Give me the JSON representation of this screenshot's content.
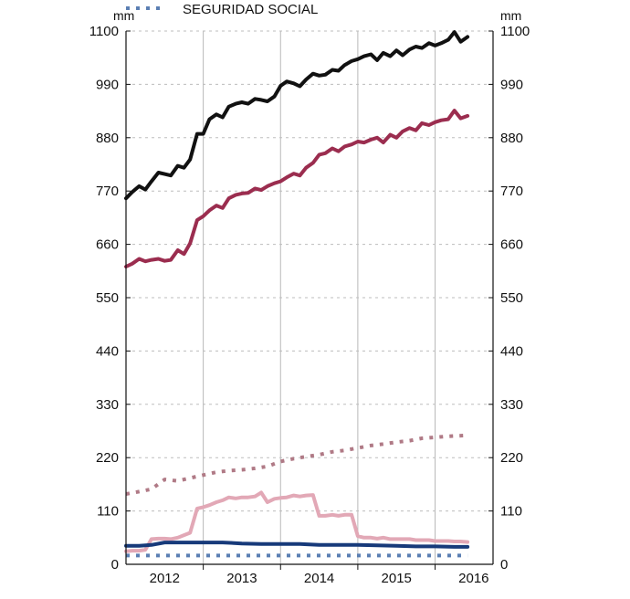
{
  "chart_data": {
    "type": "line",
    "units": {
      "left": "mm",
      "right": "mm"
    },
    "ylim": [
      0,
      1100
    ],
    "yticks": [
      0,
      110,
      220,
      330,
      440,
      550,
      660,
      770,
      880,
      990,
      1100
    ],
    "ytick_labels": [
      "0",
      "110",
      "220",
      "330",
      "440",
      "550",
      "660",
      "770",
      "880",
      "990",
      "1100"
    ],
    "xlim": [
      2011.5,
      2016.25
    ],
    "xtick_labels": [
      {
        "label": "2012",
        "value": 2012.0
      },
      {
        "label": "2013",
        "value": 2013.0
      },
      {
        "label": "2014",
        "value": 2014.0
      },
      {
        "label": "2015",
        "value": 2015.0
      },
      {
        "label": "2016",
        "value": 2016.0
      }
    ],
    "year_boundaries": [
      2012.5,
      2013.5,
      2014.5,
      2015.5
    ],
    "grid": {
      "horizontal": "dashed",
      "vertical": "year-boundaries"
    },
    "legend_visible": [
      {
        "label": "SEGURIDAD SOCIAL",
        "series_id": "ss"
      }
    ],
    "series": [
      {
        "id": "total",
        "color": "#111111",
        "style": "solid",
        "points": [
          [
            2011.5,
            755
          ],
          [
            2011.58,
            768
          ],
          [
            2011.67,
            780
          ],
          [
            2011.75,
            773
          ],
          [
            2011.83,
            790
          ],
          [
            2011.92,
            808
          ],
          [
            2012.0,
            805
          ],
          [
            2012.08,
            802
          ],
          [
            2012.17,
            822
          ],
          [
            2012.25,
            818
          ],
          [
            2012.33,
            835
          ],
          [
            2012.42,
            888
          ],
          [
            2012.5,
            888
          ],
          [
            2012.58,
            918
          ],
          [
            2012.67,
            928
          ],
          [
            2012.75,
            922
          ],
          [
            2012.83,
            944
          ],
          [
            2012.92,
            950
          ],
          [
            2013.0,
            953
          ],
          [
            2013.08,
            950
          ],
          [
            2013.17,
            960
          ],
          [
            2013.25,
            958
          ],
          [
            2013.33,
            955
          ],
          [
            2013.42,
            965
          ],
          [
            2013.5,
            987
          ],
          [
            2013.58,
            996
          ],
          [
            2013.67,
            992
          ],
          [
            2013.75,
            986
          ],
          [
            2013.83,
            1000
          ],
          [
            2013.92,
            1012
          ],
          [
            2014.0,
            1008
          ],
          [
            2014.08,
            1010
          ],
          [
            2014.17,
            1020
          ],
          [
            2014.25,
            1018
          ],
          [
            2014.33,
            1030
          ],
          [
            2014.42,
            1038
          ],
          [
            2014.5,
            1042
          ],
          [
            2014.58,
            1048
          ],
          [
            2014.67,
            1052
          ],
          [
            2014.75,
            1040
          ],
          [
            2014.83,
            1055
          ],
          [
            2014.92,
            1048
          ],
          [
            2015.0,
            1060
          ],
          [
            2015.08,
            1050
          ],
          [
            2015.17,
            1062
          ],
          [
            2015.25,
            1068
          ],
          [
            2015.33,
            1065
          ],
          [
            2015.42,
            1075
          ],
          [
            2015.5,
            1070
          ],
          [
            2015.58,
            1075
          ],
          [
            2015.67,
            1082
          ],
          [
            2015.75,
            1098
          ],
          [
            2015.83,
            1078
          ],
          [
            2015.92,
            1088
          ]
        ]
      },
      {
        "id": "crimson",
        "color": "#9b2d4f",
        "style": "solid",
        "points": [
          [
            2011.5,
            614
          ],
          [
            2011.58,
            620
          ],
          [
            2011.67,
            630
          ],
          [
            2011.75,
            625
          ],
          [
            2011.83,
            628
          ],
          [
            2011.92,
            630
          ],
          [
            2012.0,
            626
          ],
          [
            2012.08,
            628
          ],
          [
            2012.17,
            648
          ],
          [
            2012.25,
            640
          ],
          [
            2012.33,
            662
          ],
          [
            2012.42,
            710
          ],
          [
            2012.5,
            718
          ],
          [
            2012.58,
            730
          ],
          [
            2012.67,
            740
          ],
          [
            2012.75,
            735
          ],
          [
            2012.83,
            755
          ],
          [
            2012.92,
            762
          ],
          [
            2013.0,
            765
          ],
          [
            2013.08,
            766
          ],
          [
            2013.17,
            775
          ],
          [
            2013.25,
            772
          ],
          [
            2013.33,
            780
          ],
          [
            2013.42,
            786
          ],
          [
            2013.5,
            790
          ],
          [
            2013.58,
            798
          ],
          [
            2013.67,
            806
          ],
          [
            2013.75,
            802
          ],
          [
            2013.83,
            818
          ],
          [
            2013.92,
            828
          ],
          [
            2014.0,
            845
          ],
          [
            2014.08,
            848
          ],
          [
            2014.17,
            858
          ],
          [
            2014.25,
            852
          ],
          [
            2014.33,
            862
          ],
          [
            2014.42,
            866
          ],
          [
            2014.5,
            872
          ],
          [
            2014.58,
            870
          ],
          [
            2014.67,
            876
          ],
          [
            2014.75,
            880
          ],
          [
            2014.83,
            870
          ],
          [
            2014.92,
            886
          ],
          [
            2015.0,
            880
          ],
          [
            2015.08,
            893
          ],
          [
            2015.17,
            900
          ],
          [
            2015.25,
            895
          ],
          [
            2015.33,
            910
          ],
          [
            2015.42,
            906
          ],
          [
            2015.5,
            912
          ],
          [
            2015.58,
            916
          ],
          [
            2015.67,
            918
          ],
          [
            2015.75,
            936
          ],
          [
            2015.83,
            920
          ],
          [
            2015.92,
            925
          ]
        ]
      },
      {
        "id": "dotted",
        "color": "#b07a86",
        "style": "dotted",
        "points": [
          [
            2011.5,
            145
          ],
          [
            2011.67,
            150
          ],
          [
            2011.83,
            155
          ],
          [
            2012.0,
            175
          ],
          [
            2012.17,
            172
          ],
          [
            2012.33,
            178
          ],
          [
            2012.5,
            184
          ],
          [
            2012.67,
            190
          ],
          [
            2012.83,
            193
          ],
          [
            2013.0,
            195
          ],
          [
            2013.17,
            198
          ],
          [
            2013.33,
            202
          ],
          [
            2013.5,
            212
          ],
          [
            2013.67,
            218
          ],
          [
            2013.83,
            222
          ],
          [
            2014.0,
            226
          ],
          [
            2014.17,
            232
          ],
          [
            2014.33,
            235
          ],
          [
            2014.5,
            240
          ],
          [
            2014.67,
            245
          ],
          [
            2014.83,
            248
          ],
          [
            2015.0,
            252
          ],
          [
            2015.17,
            255
          ],
          [
            2015.33,
            260
          ],
          [
            2015.5,
            262
          ],
          [
            2015.67,
            264
          ],
          [
            2015.92,
            266
          ]
        ]
      },
      {
        "id": "pink",
        "color": "#e2a8b6",
        "style": "solid",
        "points": [
          [
            2011.5,
            27
          ],
          [
            2011.58,
            28
          ],
          [
            2011.67,
            28
          ],
          [
            2011.75,
            30
          ],
          [
            2011.83,
            52
          ],
          [
            2011.92,
            53
          ],
          [
            2012.0,
            53
          ],
          [
            2012.08,
            52
          ],
          [
            2012.17,
            55
          ],
          [
            2012.25,
            60
          ],
          [
            2012.33,
            65
          ],
          [
            2012.42,
            115
          ],
          [
            2012.5,
            118
          ],
          [
            2012.58,
            122
          ],
          [
            2012.67,
            128
          ],
          [
            2012.75,
            132
          ],
          [
            2012.83,
            138
          ],
          [
            2012.92,
            136
          ],
          [
            2013.0,
            138
          ],
          [
            2013.08,
            138
          ],
          [
            2013.17,
            140
          ],
          [
            2013.25,
            148
          ],
          [
            2013.33,
            128
          ],
          [
            2013.42,
            135
          ],
          [
            2013.5,
            137
          ],
          [
            2013.58,
            138
          ],
          [
            2013.67,
            142
          ],
          [
            2013.75,
            140
          ],
          [
            2013.83,
            142
          ],
          [
            2013.92,
            143
          ],
          [
            2014.0,
            100
          ],
          [
            2014.08,
            100
          ],
          [
            2014.17,
            102
          ],
          [
            2014.25,
            100
          ],
          [
            2014.33,
            102
          ],
          [
            2014.42,
            102
          ],
          [
            2014.5,
            58
          ],
          [
            2014.58,
            55
          ],
          [
            2014.67,
            55
          ],
          [
            2014.75,
            53
          ],
          [
            2014.83,
            55
          ],
          [
            2014.92,
            52
          ],
          [
            2015.0,
            52
          ],
          [
            2015.08,
            52
          ],
          [
            2015.17,
            52
          ],
          [
            2015.25,
            50
          ],
          [
            2015.33,
            50
          ],
          [
            2015.42,
            50
          ],
          [
            2015.5,
            48
          ],
          [
            2015.58,
            48
          ],
          [
            2015.67,
            48
          ],
          [
            2015.75,
            47
          ],
          [
            2015.83,
            47
          ],
          [
            2015.92,
            46
          ]
        ]
      },
      {
        "id": "navy",
        "color": "#173a7a",
        "style": "solid",
        "points": [
          [
            2011.5,
            38
          ],
          [
            2011.67,
            38
          ],
          [
            2011.83,
            40
          ],
          [
            2012.0,
            45
          ],
          [
            2012.25,
            45
          ],
          [
            2012.5,
            45
          ],
          [
            2012.75,
            45
          ],
          [
            2013.0,
            43
          ],
          [
            2013.25,
            42
          ],
          [
            2013.5,
            42
          ],
          [
            2013.75,
            42
          ],
          [
            2014.0,
            40
          ],
          [
            2014.25,
            40
          ],
          [
            2014.5,
            40
          ],
          [
            2014.75,
            39
          ],
          [
            2015.0,
            38
          ],
          [
            2015.25,
            37
          ],
          [
            2015.5,
            37
          ],
          [
            2015.75,
            36
          ],
          [
            2015.92,
            36
          ]
        ]
      },
      {
        "id": "ss",
        "label": "SEGURIDAD SOCIAL",
        "color": "#5b7fb3",
        "style": "dotted",
        "points": [
          [
            2011.5,
            18
          ],
          [
            2012.0,
            18
          ],
          [
            2012.5,
            18
          ],
          [
            2013.0,
            18
          ],
          [
            2013.5,
            18
          ],
          [
            2014.0,
            18
          ],
          [
            2014.5,
            18
          ],
          [
            2015.0,
            18
          ],
          [
            2015.5,
            18
          ],
          [
            2015.92,
            18
          ]
        ]
      }
    ]
  }
}
